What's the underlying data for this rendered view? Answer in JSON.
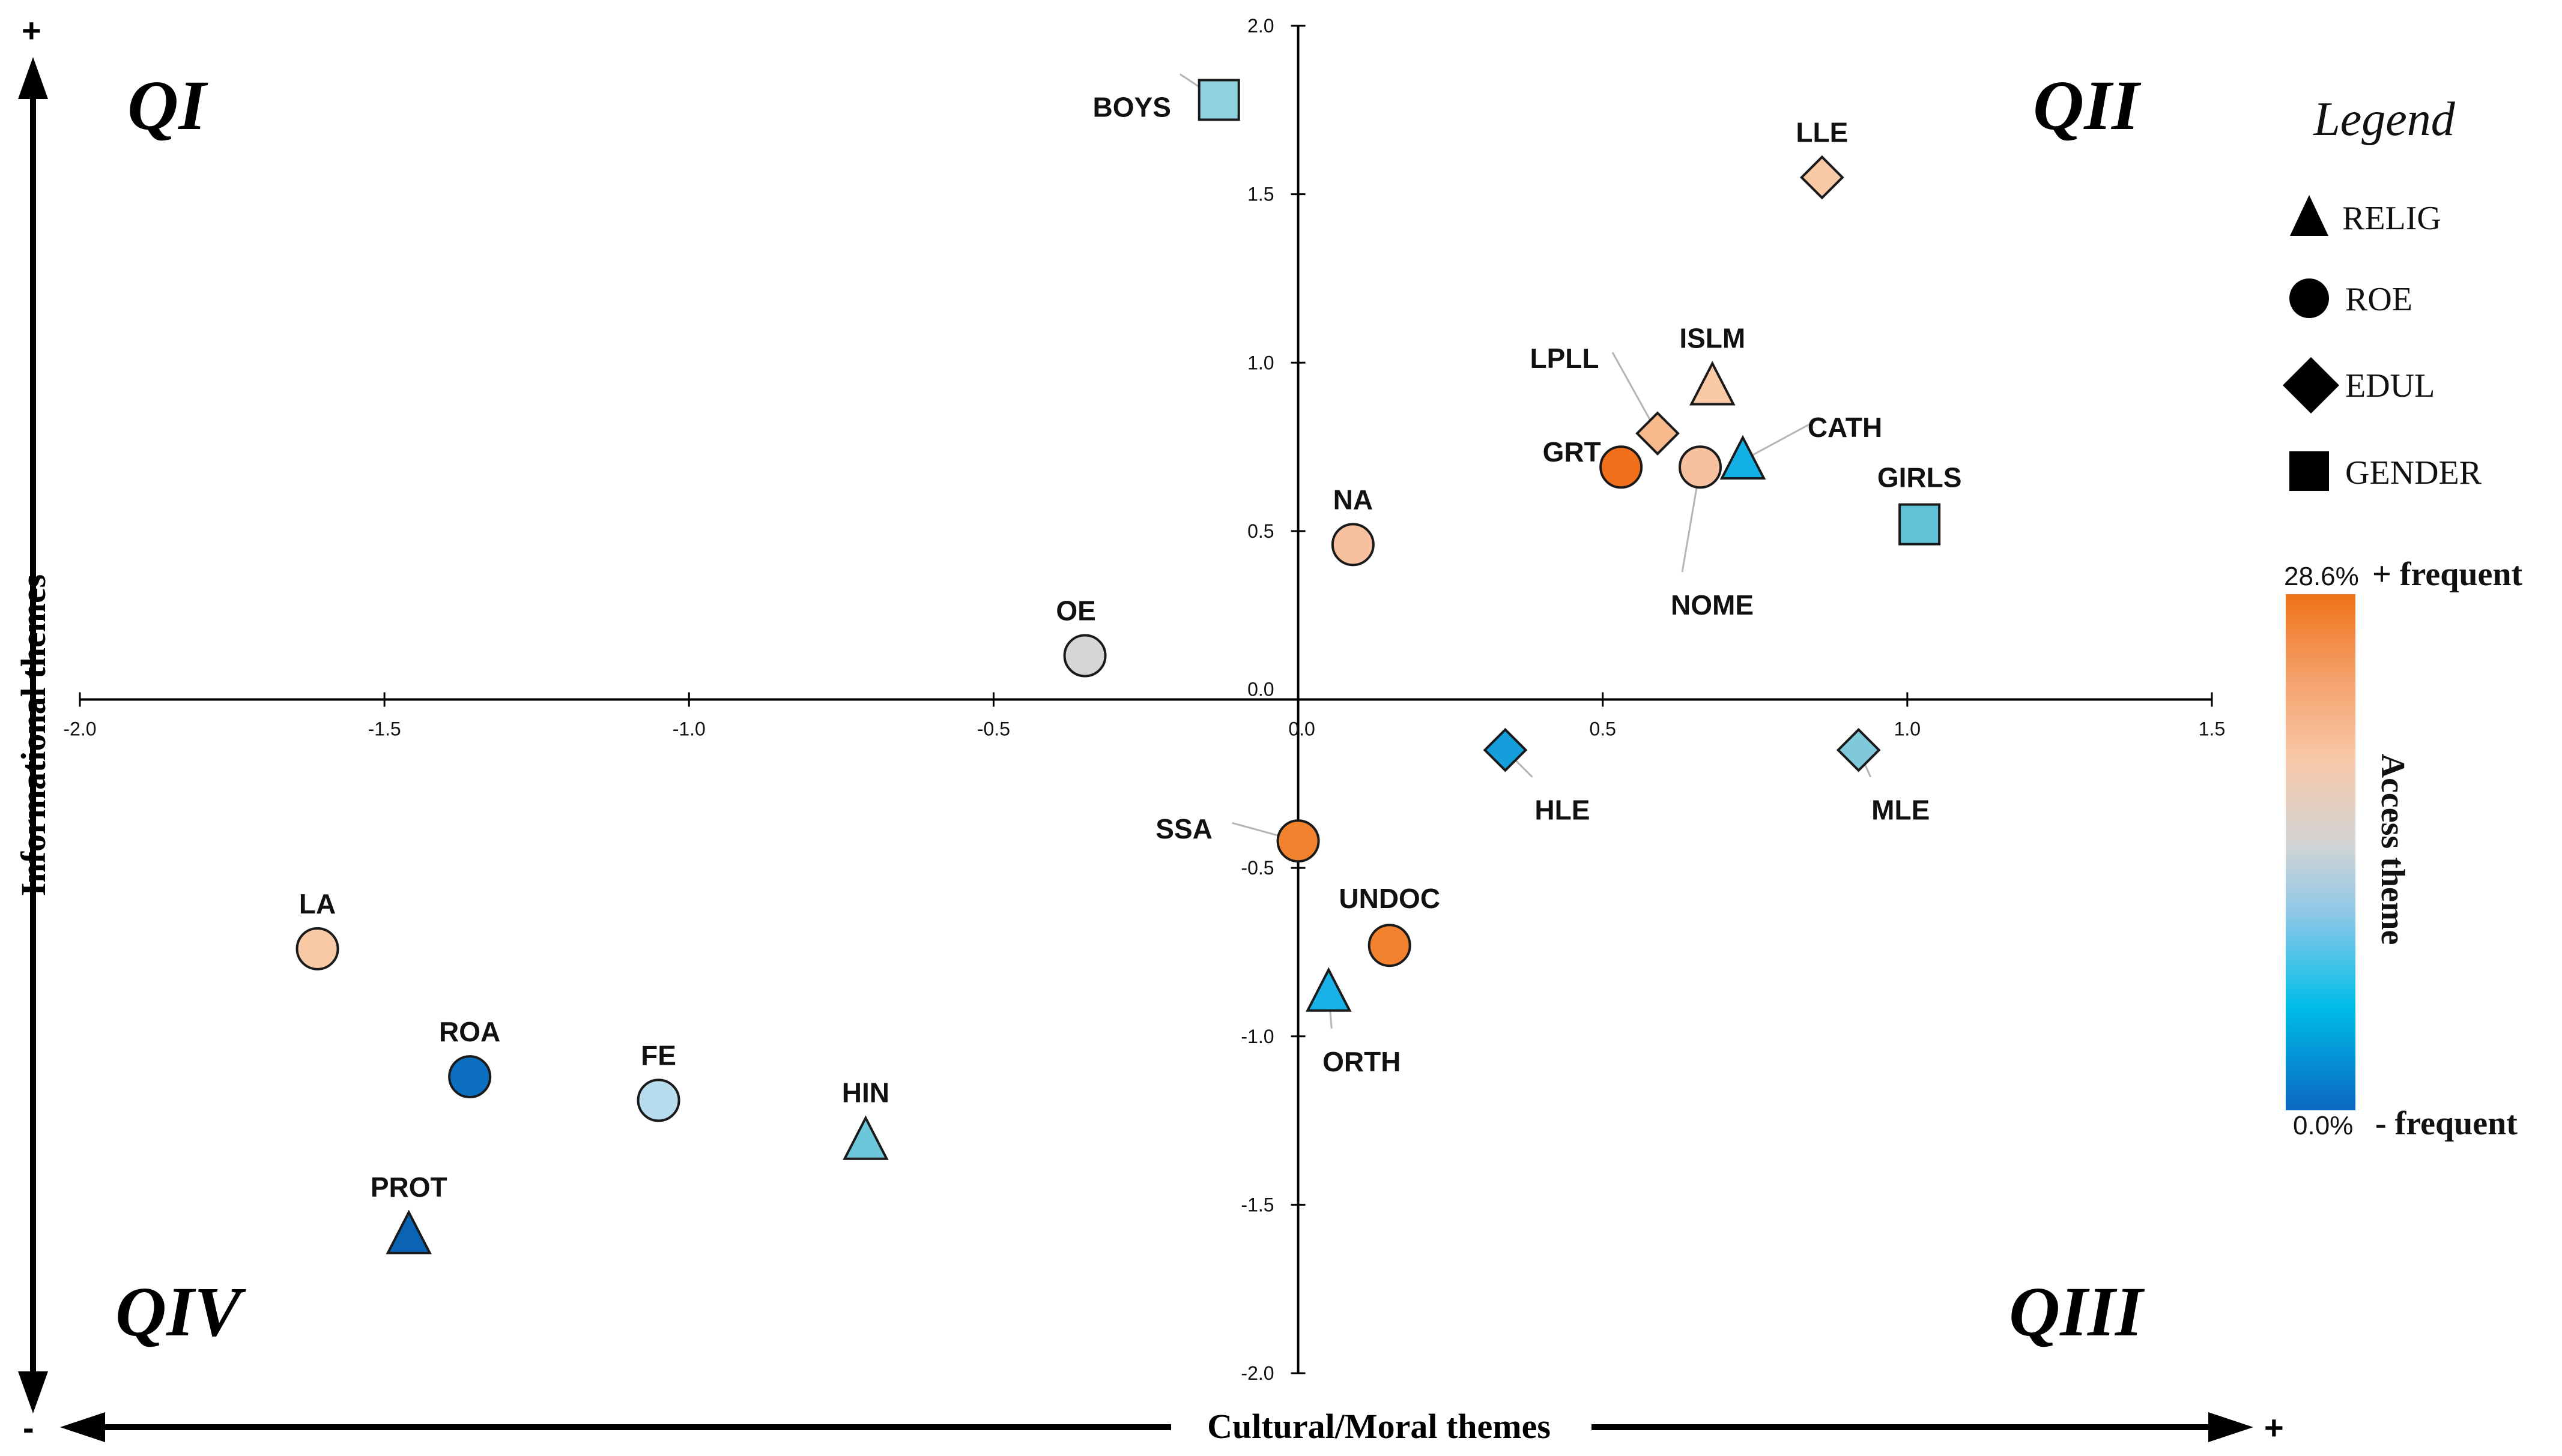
{
  "chart_data": {
    "type": "scatter",
    "xlim": [
      -2.0,
      1.5
    ],
    "ylim": [
      -2.0,
      2.0
    ],
    "x_ticks": [
      "-2.0",
      "-1.5",
      "-1.0",
      "-0.5",
      "0.0",
      "0.5",
      "1.0",
      "1.5"
    ],
    "y_ticks": [
      "2.0",
      "1.5",
      "1.0",
      "0.5",
      "0.0",
      "-0.5",
      "-1.0",
      "-1.5",
      "-2.0"
    ],
    "xlabel": "Cultural/Moral themes",
    "ylabel": "Informational themes",
    "axis_signs": {
      "x_minus": "-",
      "x_plus": "+",
      "y_plus": "+"
    },
    "quadrants": {
      "q1": "QI",
      "q2": "QII",
      "q3": "QIII",
      "q4": "QIV"
    },
    "legend": {
      "title": "Legend",
      "items": [
        {
          "shape": "triangle",
          "label": "RELIG"
        },
        {
          "shape": "circle",
          "label": "ROE"
        },
        {
          "shape": "diamond",
          "label": "EDUL"
        },
        {
          "shape": "square",
          "label": "GENDER"
        }
      ]
    },
    "colorbar": {
      "title": "Access theme",
      "max_label": "28.6%",
      "max_text": "+ frequent",
      "min_label": "0.0%",
      "min_text": "- frequent",
      "stops": [
        "#0a66c2",
        "#00bde8",
        "#8ec8e8",
        "#d4d4d4",
        "#f8c8a8",
        "#f4a06a",
        "#f07218"
      ]
    },
    "points": [
      {
        "label": "BOYS",
        "x": -0.13,
        "y": 1.78,
        "shape": "square",
        "color": "#8fd3e0"
      },
      {
        "label": "LLE",
        "x": 0.86,
        "y": 1.55,
        "shape": "diamond",
        "color": "#f9c9a6"
      },
      {
        "label": "ISLM",
        "x": 0.68,
        "y": 0.93,
        "shape": "triangle",
        "color": "#f9c9a6"
      },
      {
        "label": "LPLL",
        "x": 0.59,
        "y": 0.79,
        "shape": "diamond",
        "color": "#f7b88c"
      },
      {
        "label": "GRT",
        "x": 0.53,
        "y": 0.69,
        "shape": "circle",
        "color": "#f26f1b"
      },
      {
        "label": "NOME",
        "x": 0.66,
        "y": 0.69,
        "shape": "circle",
        "color": "#f7c09e"
      },
      {
        "label": "CATH",
        "x": 0.73,
        "y": 0.71,
        "shape": "triangle",
        "color": "#13b0e6"
      },
      {
        "label": "GIRLS",
        "x": 1.02,
        "y": 0.52,
        "shape": "square",
        "color": "#62c2d8"
      },
      {
        "label": "NA",
        "x": 0.09,
        "y": 0.46,
        "shape": "circle",
        "color": "#f7c09e"
      },
      {
        "label": "OE",
        "x": -0.35,
        "y": 0.13,
        "shape": "circle",
        "color": "#d6d6d6"
      },
      {
        "label": "HLE",
        "x": 0.34,
        "y": -0.15,
        "shape": "diamond",
        "color": "#149fdc"
      },
      {
        "label": "MLE",
        "x": 0.92,
        "y": -0.15,
        "shape": "diamond",
        "color": "#80c9db"
      },
      {
        "label": "SSA",
        "x": 0.0,
        "y": -0.42,
        "shape": "circle",
        "color": "#f2822e"
      },
      {
        "label": "UNDOC",
        "x": 0.15,
        "y": -0.73,
        "shape": "circle",
        "color": "#f2822e"
      },
      {
        "label": "ORTH",
        "x": 0.05,
        "y": -0.87,
        "shape": "triangle",
        "color": "#19b2e8"
      },
      {
        "label": "LA",
        "x": -1.61,
        "y": -0.74,
        "shape": "circle",
        "color": "#f9c9a6"
      },
      {
        "label": "ROA",
        "x": -1.36,
        "y": -1.12,
        "shape": "circle",
        "color": "#0d6fc0"
      },
      {
        "label": "FE",
        "x": -1.05,
        "y": -1.19,
        "shape": "circle",
        "color": "#b7dcee"
      },
      {
        "label": "HIN",
        "x": -0.71,
        "y": -1.31,
        "shape": "triangle",
        "color": "#6dc7db"
      },
      {
        "label": "PROT",
        "x": -1.46,
        "y": -1.59,
        "shape": "triangle",
        "color": "#0b63b6"
      }
    ]
  }
}
